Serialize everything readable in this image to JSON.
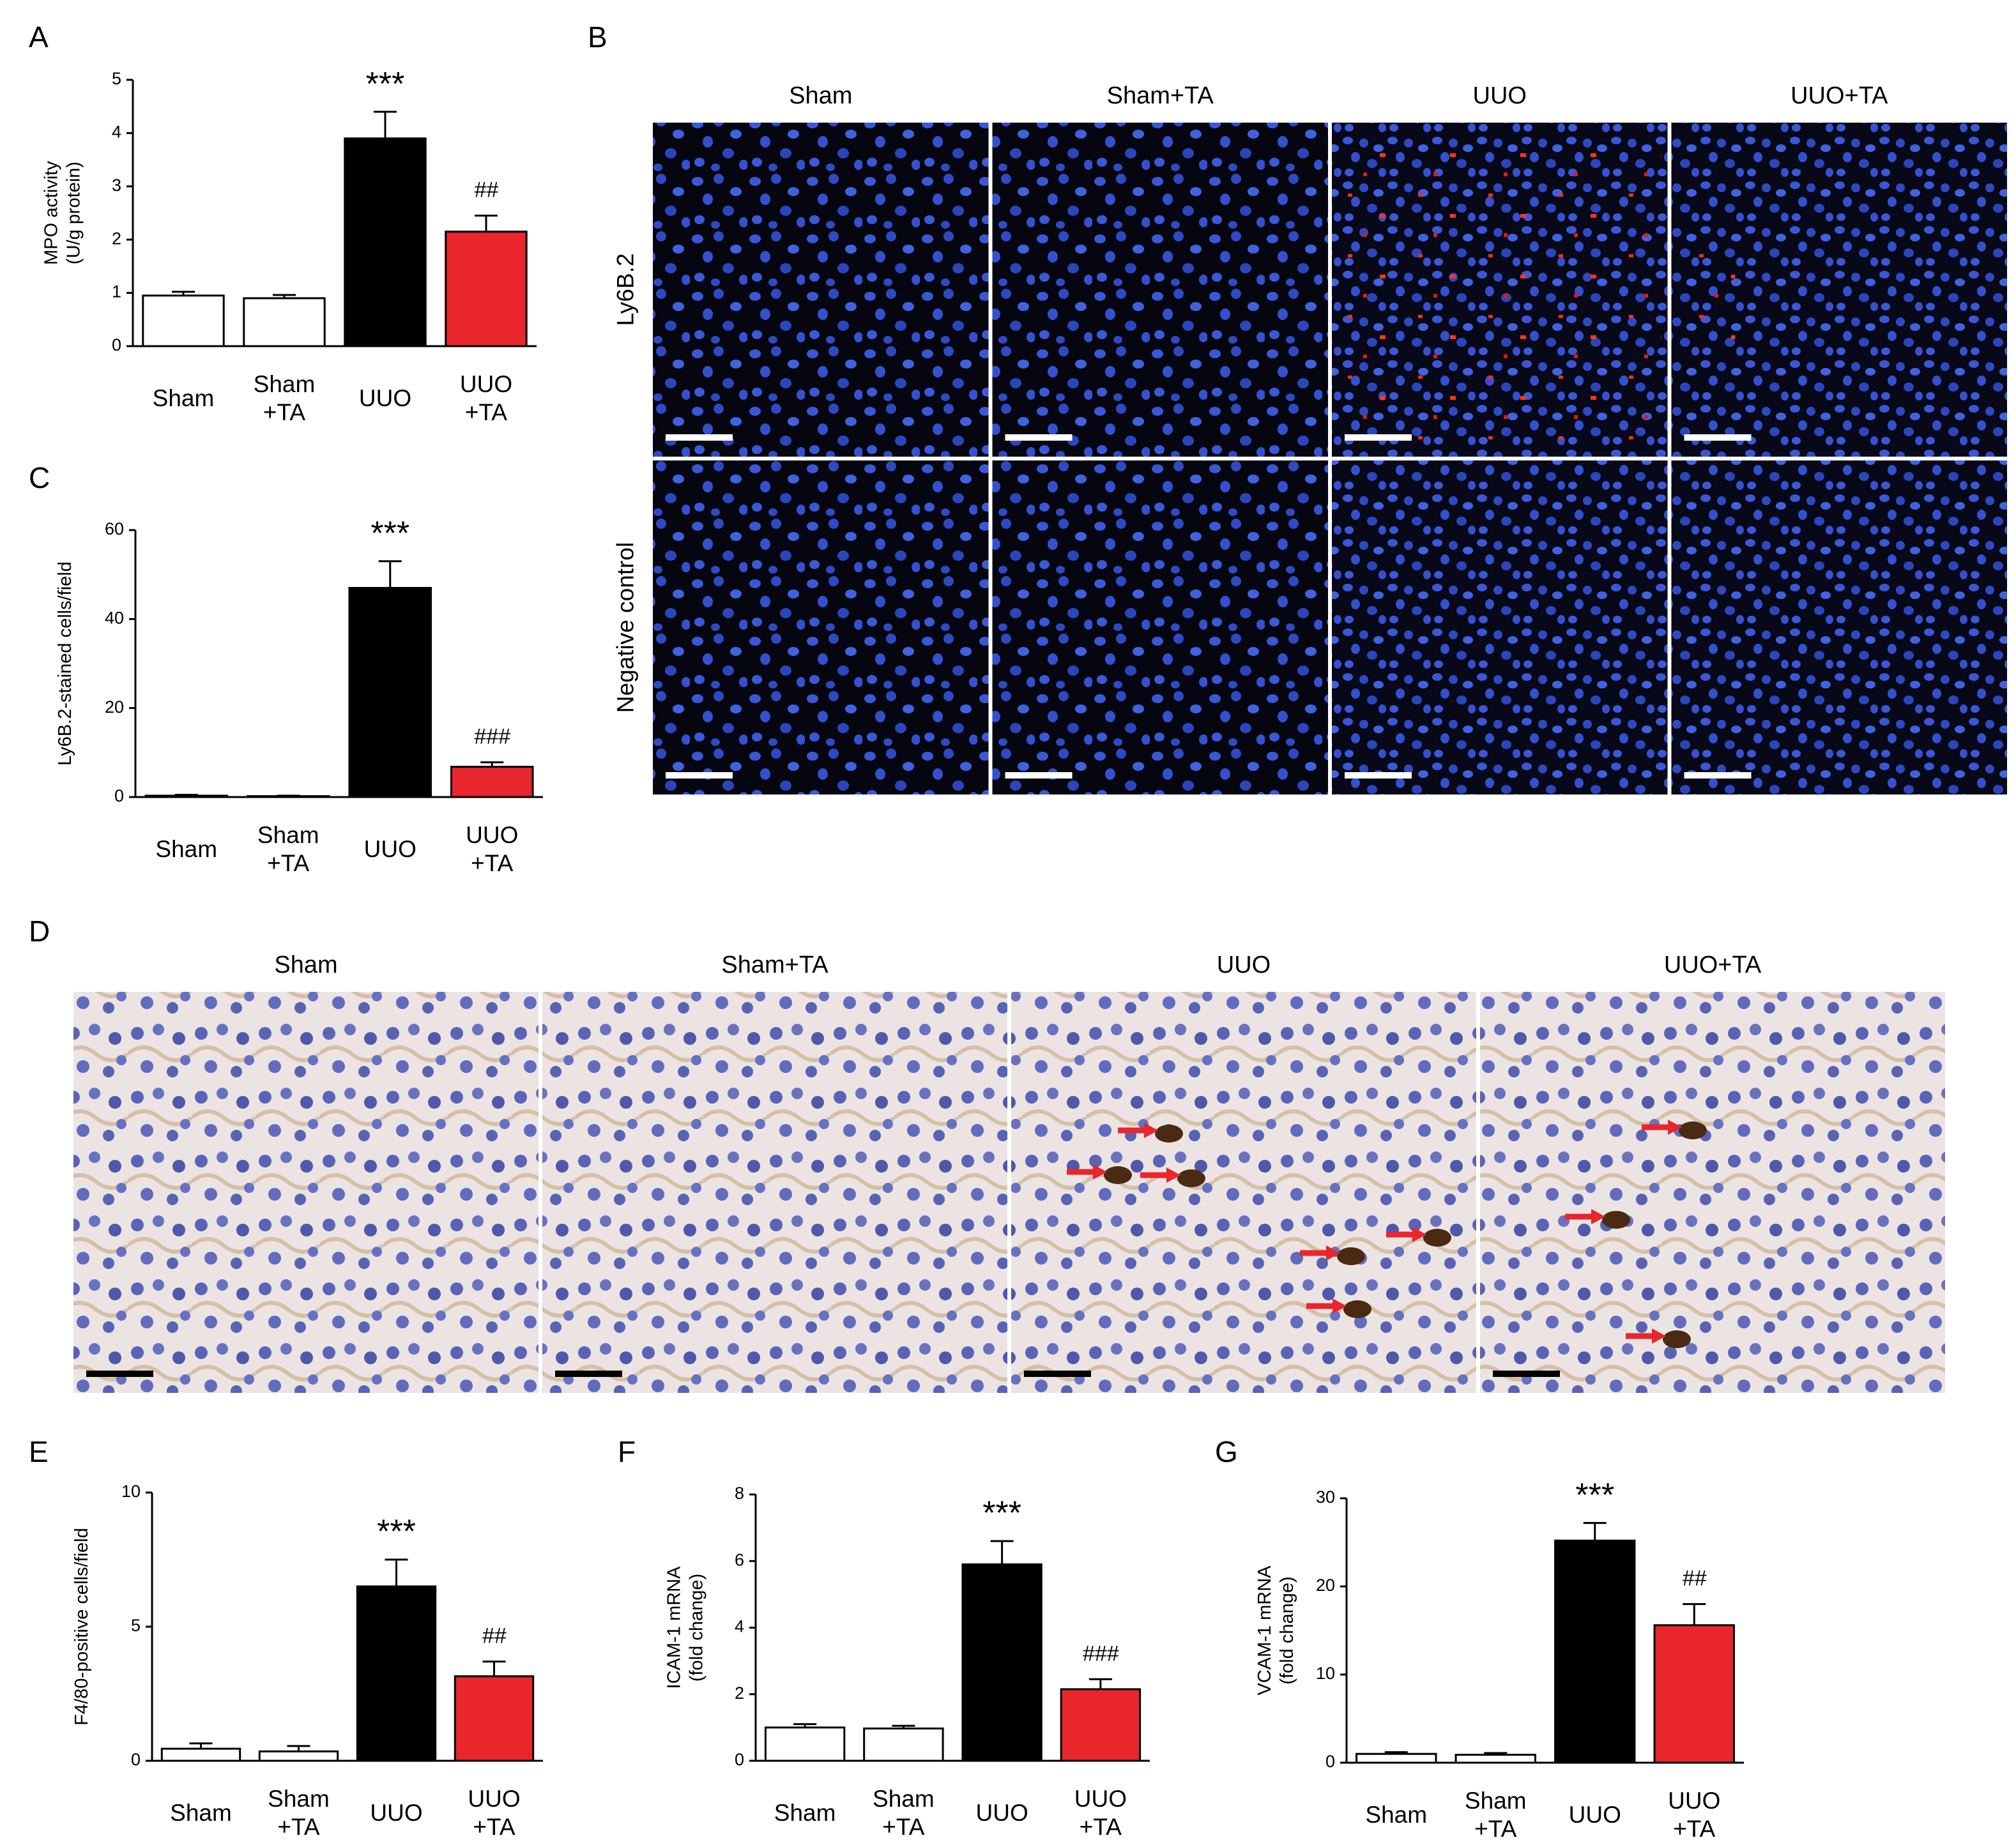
{
  "chart_data": [
    {
      "type": "bar",
      "label": "A",
      "ylabel": "MPO activity\n(U/g protein)",
      "categories": [
        "Sham",
        "Sham\n+TA",
        "UUO",
        "UUO\n+TA"
      ],
      "values": [
        0.95,
        0.9,
        3.9,
        2.15
      ],
      "errors": [
        0.07,
        0.06,
        0.5,
        0.3
      ],
      "annotations": [
        null,
        null,
        "***",
        "##"
      ],
      "colors": [
        "#ffffff",
        "#ffffff",
        "#000000",
        "#e8262b"
      ],
      "ylim": [
        0,
        5
      ],
      "yticks": [
        0,
        1,
        2,
        3,
        4,
        5
      ]
    },
    {
      "type": "bar",
      "label": "C",
      "ylabel": "Ly6B.2-stained cells/field",
      "categories": [
        "Sham",
        "Sham\n+TA",
        "UUO",
        "UUO\n+TA"
      ],
      "values": [
        0.3,
        0.2,
        47,
        6.8
      ],
      "errors": [
        0.2,
        0.1,
        6,
        1
      ],
      "annotations": [
        null,
        null,
        "***",
        "###"
      ],
      "colors": [
        "#ffffff",
        "#ffffff",
        "#000000",
        "#e8262b"
      ],
      "ylim": [
        0,
        60
      ],
      "yticks": [
        0,
        20,
        40,
        60
      ]
    },
    {
      "type": "bar",
      "label": "E",
      "ylabel": "F4/80-positive cells/field",
      "categories": [
        "Sham",
        "Sham\n+TA",
        "UUO",
        "UUO\n+TA"
      ],
      "values": [
        0.45,
        0.35,
        6.5,
        3.15
      ],
      "errors": [
        0.2,
        0.2,
        1,
        0.55
      ],
      "annotations": [
        null,
        null,
        "***",
        "##"
      ],
      "colors": [
        "#ffffff",
        "#ffffff",
        "#000000",
        "#e8262b"
      ],
      "ylim": [
        0,
        10
      ],
      "yticks": [
        0,
        5,
        10
      ]
    },
    {
      "type": "bar",
      "label": "F",
      "ylabel": "ICAM-1 mRNA\n(fold change)",
      "categories": [
        "Sham",
        "Sham\n+TA",
        "UUO",
        "UUO\n+TA"
      ],
      "values": [
        1.0,
        0.97,
        5.9,
        2.15
      ],
      "errors": [
        0.1,
        0.08,
        0.7,
        0.3
      ],
      "annotations": [
        null,
        null,
        "***",
        "###"
      ],
      "colors": [
        "#ffffff",
        "#ffffff",
        "#000000",
        "#e8262b"
      ],
      "ylim": [
        0,
        8
      ],
      "yticks": [
        0,
        2,
        4,
        6,
        8
      ]
    },
    {
      "type": "bar",
      "label": "G",
      "ylabel": "VCAM-1 mRNA\n(fold change)",
      "categories": [
        "Sham",
        "Sham\n+TA",
        "UUO",
        "UUO\n+TA"
      ],
      "values": [
        1.0,
        0.9,
        25.2,
        15.6
      ],
      "errors": [
        0.2,
        0.2,
        2,
        2.4
      ],
      "annotations": [
        null,
        null,
        "***",
        "##"
      ],
      "colors": [
        "#ffffff",
        "#ffffff",
        "#000000",
        "#e8262b"
      ],
      "ylim": [
        0,
        30
      ],
      "yticks": [
        0,
        10,
        20,
        30
      ]
    }
  ],
  "image_panels": {
    "B": {
      "label": "B",
      "columns": [
        "Sham",
        "Sham+TA",
        "UUO",
        "UUO+TA"
      ],
      "rows": [
        "Ly6B.2",
        "Negative control"
      ]
    },
    "D": {
      "label": "D",
      "columns": [
        "Sham",
        "Sham+TA",
        "UUO",
        "UUO+TA"
      ]
    }
  }
}
